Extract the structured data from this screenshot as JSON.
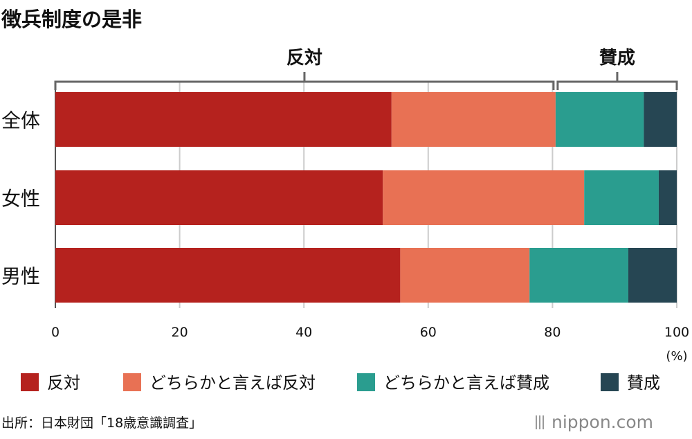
{
  "chart_data": {
    "type": "bar",
    "orientation": "horizontal",
    "stacked": true,
    "title": "徴兵制度の是非",
    "categories": [
      "全体",
      "女性",
      "男性"
    ],
    "series": [
      {
        "name": "反対",
        "color": "#b5221e",
        "values": [
          54.1,
          52.7,
          55.5
        ]
      },
      {
        "name": "どちらかと言えば反対",
        "color": "#e87154",
        "values": [
          26.4,
          32.4,
          20.8
        ]
      },
      {
        "name": "どちらかと言えば賛成",
        "color": "#2a9d8f",
        "values": [
          14.2,
          12.0,
          15.9
        ]
      },
      {
        "name": "賛成",
        "color": "#264653",
        "values": [
          5.3,
          2.9,
          7.8
        ]
      }
    ],
    "xlim": [
      0,
      100
    ],
    "xticks": [
      "0",
      "20",
      "40",
      "60",
      "80",
      "100"
    ],
    "xunit": "(%)",
    "grid": true,
    "brackets": [
      {
        "label": "反対",
        "from": 0,
        "to": 80.5
      },
      {
        "label": "賛成",
        "from": 80.5,
        "to": 100
      }
    ],
    "legend_position": "bottom"
  },
  "footer": {
    "source": "出所：日本財団「18歳意識調査」",
    "logo": "nippon.com"
  }
}
